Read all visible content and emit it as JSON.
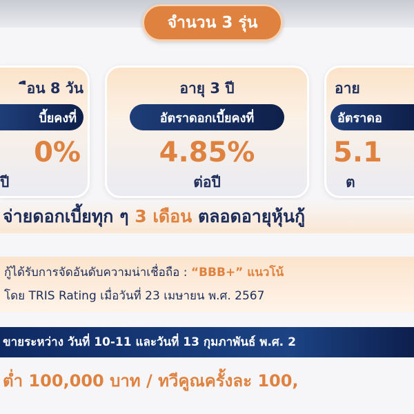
{
  "header": {
    "badge": "จำนวน 3 รุ่น"
  },
  "cards": [
    {
      "term": "ือน 8 วัน",
      "pill": "บี้ยคงที่",
      "rate": "0%",
      "per": "ปี"
    },
    {
      "term": "อายุ 3 ปี",
      "pill": "อัตราดอกเบี้ยคงที่",
      "rate": "4.85%",
      "per": "ต่อปี"
    },
    {
      "term": "อาย",
      "pill": "อัตราดอ",
      "rate": "5.1",
      "per": "ต"
    }
  ],
  "payment": {
    "prefix": "จ่ายดอกเบี้ยทุก ๆ ",
    "highlight": "3 เดือน",
    "suffix": " ตลอดอายุหุ้นกู้"
  },
  "rating": {
    "line1_prefix": "กู้ได้รับการจัดอันดับความน่าเชื่อถือ : ",
    "line1_highlight": "“BBB+” แนวโน้",
    "line2": "โดย TRIS Rating เมื่อวันที่ 23 เมษายน พ.ศ. 2567"
  },
  "sale_period": "ขายระหว่าง วันที่ 10-11 และวันที่ 13 กุมภาพันธ์ พ.ศ. 2",
  "minimum": "ต่ำ 100,000 บาท / ทวีคูณครั้งละ 100,",
  "colors": {
    "orange": "#e0823f",
    "navy": "#1d2d5a",
    "sale_bar": "#1c4384"
  }
}
